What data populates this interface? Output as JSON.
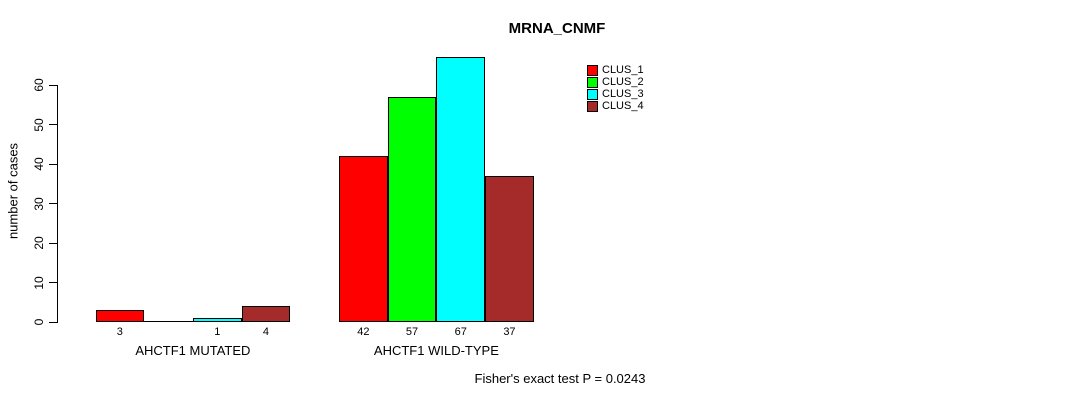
{
  "chart_data": {
    "type": "bar",
    "title": "MRNA_CNMF",
    "ylabel": "number of cases",
    "xlabel": "",
    "ylim": [
      0,
      60
    ],
    "yticks": [
      0,
      10,
      20,
      30,
      40,
      50,
      60
    ],
    "grid": false,
    "legend_position": "top-right",
    "categories": [
      "AHCTF1 MUTATED",
      "AHCTF1 WILD-TYPE"
    ],
    "series": [
      {
        "name": "CLUS_1",
        "color": "#ff0000",
        "values": [
          3,
          42
        ]
      },
      {
        "name": "CLUS_2",
        "color": "#00ff00",
        "values": [
          0,
          57
        ]
      },
      {
        "name": "CLUS_3",
        "color": "#00ffff",
        "values": [
          1,
          67
        ]
      },
      {
        "name": "CLUS_4",
        "color": "#a52a2a",
        "values": [
          4,
          37
        ]
      }
    ],
    "value_labels": [
      [
        "3",
        "",
        "1",
        "4"
      ],
      [
        "42",
        "57",
        "67",
        "37"
      ]
    ],
    "caption": "Fisher's exact test P = 0.0243",
    "colors": {
      "axis": "#000000",
      "text": "#000000",
      "background": "#ffffff"
    }
  }
}
